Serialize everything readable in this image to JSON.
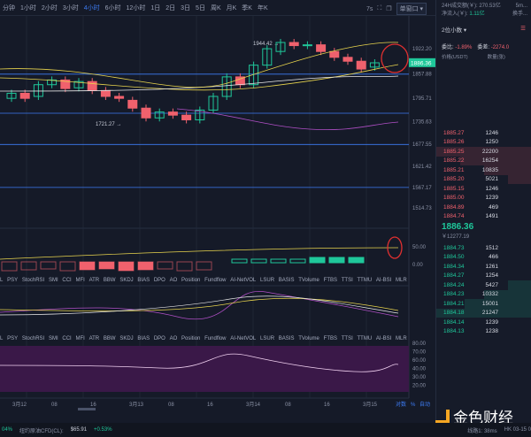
{
  "toolbar": {
    "timeframes": [
      "分钟",
      "1小时",
      "2小时",
      "3小时",
      "4小时",
      "6小时",
      "12小时",
      "1日",
      "2日",
      "3日",
      "5日",
      "周K",
      "月K",
      "季K",
      "年K"
    ],
    "active": "4小时",
    "countdown": "7s",
    "window_mode": "单窗口 ▾"
  },
  "price_axis": [
    "1922.20",
    "1857.88",
    "1795.71",
    "1735.63",
    "1677.55",
    "1621.42",
    "1567.17",
    "1514.73"
  ],
  "current_price_tag": "1886.36",
  "annotations": {
    "high": "1944.42 →",
    "low": "1721.27 →"
  },
  "volume_axis": {
    "top": "50.00",
    "zero": "0.00"
  },
  "rsi_axis": [
    "80.00",
    "70.00",
    "60.00",
    "40.00",
    "30.00",
    "20.00"
  ],
  "indicator_tabs": [
    "L",
    "PSY",
    "StochRSI",
    "SMI",
    "CCI",
    "MFI",
    "ATR",
    "BBW",
    "SKDJ",
    "BIAS",
    "DPO",
    "AO",
    "Position",
    "Fundflow",
    "AI-NetVOL",
    "LSUR",
    "BASIS",
    "TVolume",
    "FTBS",
    "TTSI",
    "TTMU",
    "AI-BSI",
    "MLR"
  ],
  "date_axis": [
    "3月12",
    "08",
    "16",
    "3月13",
    "08",
    "16",
    "3月14",
    "08",
    "16",
    "3月15"
  ],
  "date_controls": {
    "log": "对数",
    "pct": "%",
    "auto": "自动"
  },
  "panel": {
    "turnover_label": "24H成交额(￥):",
    "turnover": "270.53亿",
    "inflow_label": "净流入(￥):",
    "inflow": "1.11亿",
    "extra1": "5m...",
    "extra2": "换手...",
    "decimals": "2位小数 ▾",
    "ratio_label": "委比:",
    "ratio": "-1.89%",
    "diff_label": "委差:",
    "diff": "-2274.0",
    "col_price": "价格(USDT)",
    "col_qty": "数量(张)",
    "asks": [
      [
        "1885.27",
        "1246",
        0
      ],
      [
        "1885.26",
        "1250",
        0
      ],
      [
        "1885.25",
        "22200",
        1.0
      ],
      [
        "1885.22",
        "16254",
        0.75
      ],
      [
        "1885.21",
        "10835",
        0.5
      ],
      [
        "1885.20",
        "5021",
        0.25
      ],
      [
        "1885.15",
        "1246",
        0
      ],
      [
        "1885.00",
        "1239",
        0
      ],
      [
        "1884.89",
        "469",
        0
      ],
      [
        "1884.74",
        "1491",
        0
      ]
    ],
    "last_price": "1886.36",
    "last_cny": "￥12277.19",
    "bids": [
      [
        "1884.73",
        "1512",
        0
      ],
      [
        "1884.50",
        "466",
        0
      ],
      [
        "1884.34",
        "1261",
        0
      ],
      [
        "1884.27",
        "1254",
        0
      ],
      [
        "1884.24",
        "5427",
        0.25
      ],
      [
        "1884.23",
        "10332",
        0.5
      ],
      [
        "1884.21",
        "15001",
        0.7
      ],
      [
        "1884.18",
        "21247",
        1.0
      ],
      [
        "1884.14",
        "1239",
        0
      ],
      [
        "1884.13",
        "1238",
        0
      ]
    ]
  },
  "status": {
    "left_pct": "04%",
    "oil_label": "纽约原油CFD(CL):",
    "oil_price": "$65.91",
    "oil_change": "+0.53%",
    "latency": "线路1: 38ms",
    "clock": "HK 03-15 0"
  },
  "watermark": "金色财经",
  "colors": {
    "up": "#1fc79a",
    "down": "#f0616d",
    "accent": "#3d7cf5"
  }
}
